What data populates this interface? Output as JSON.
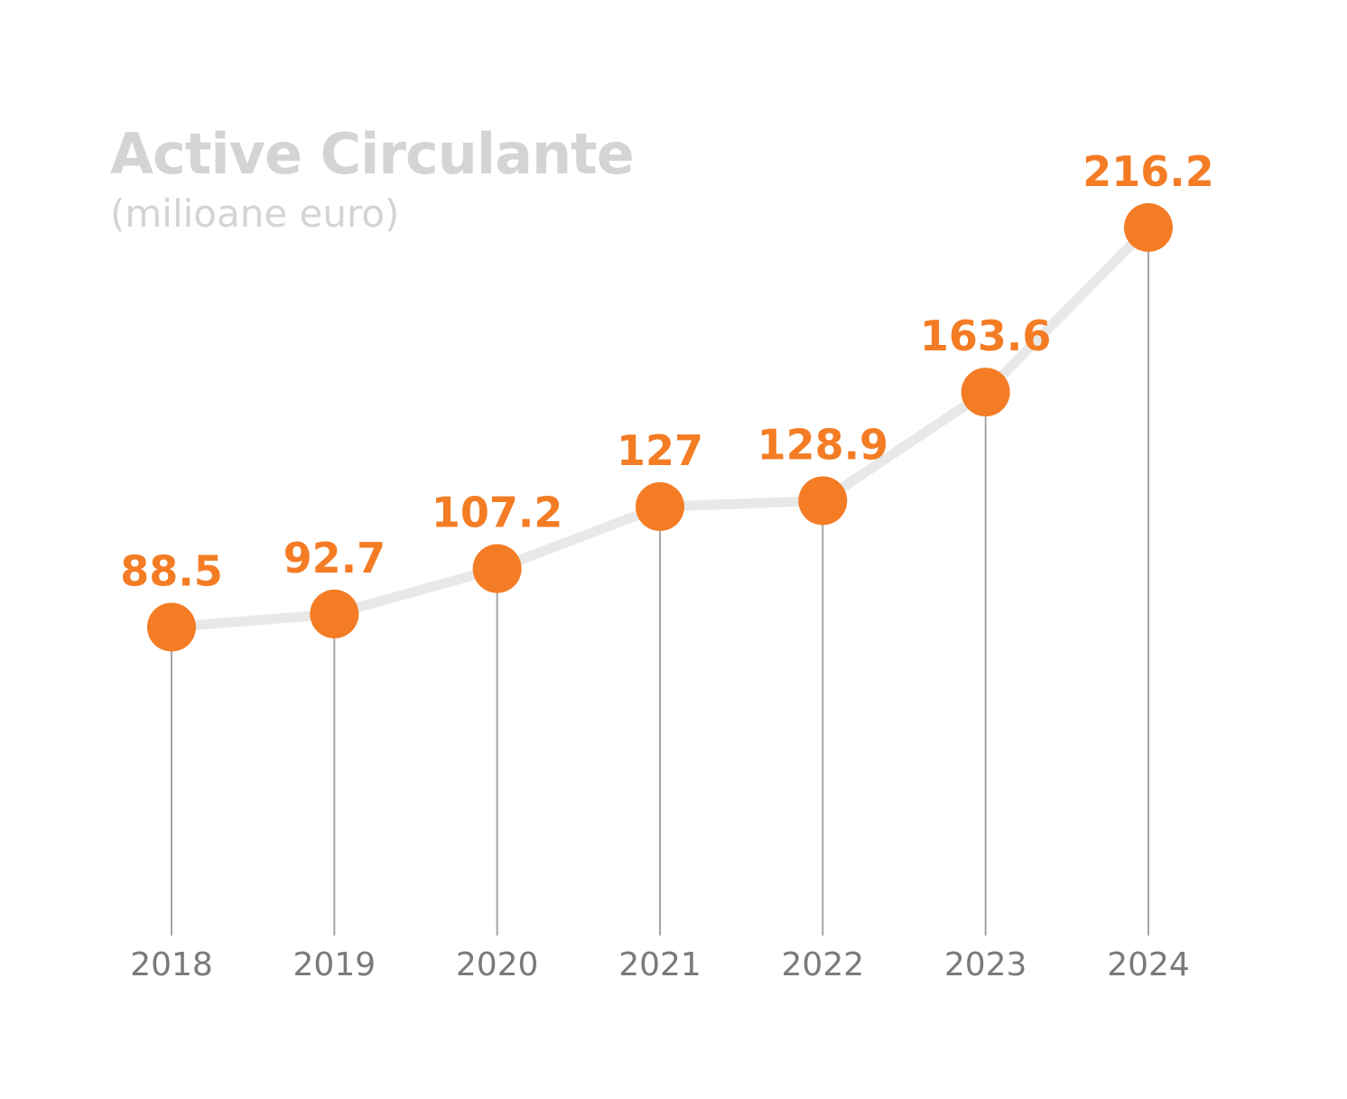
{
  "chart_data": {
    "type": "line",
    "title": "Active Circulante",
    "subtitle": "(milioane euro)",
    "categories": [
      "2018",
      "2019",
      "2020",
      "2021",
      "2022",
      "2023",
      "2024"
    ],
    "values": [
      88.5,
      92.7,
      107.2,
      127,
      128.9,
      163.6,
      216.2
    ],
    "value_labels": [
      "88.5",
      "92.7",
      "107.2",
      "127",
      "128.9",
      "163.6",
      "216.2"
    ],
    "xlabel": "",
    "ylabel": "",
    "grid": false,
    "legend": "none"
  },
  "colors": {
    "title": "#d4d4d4",
    "subtitle": "#d4d4d4",
    "marker": "#f47c24",
    "value_label": "#f47c24",
    "line": "#e8e8e8",
    "stem": "#a5a5a5",
    "tick_label": "#7a7a7a",
    "background": "#ffffff"
  }
}
